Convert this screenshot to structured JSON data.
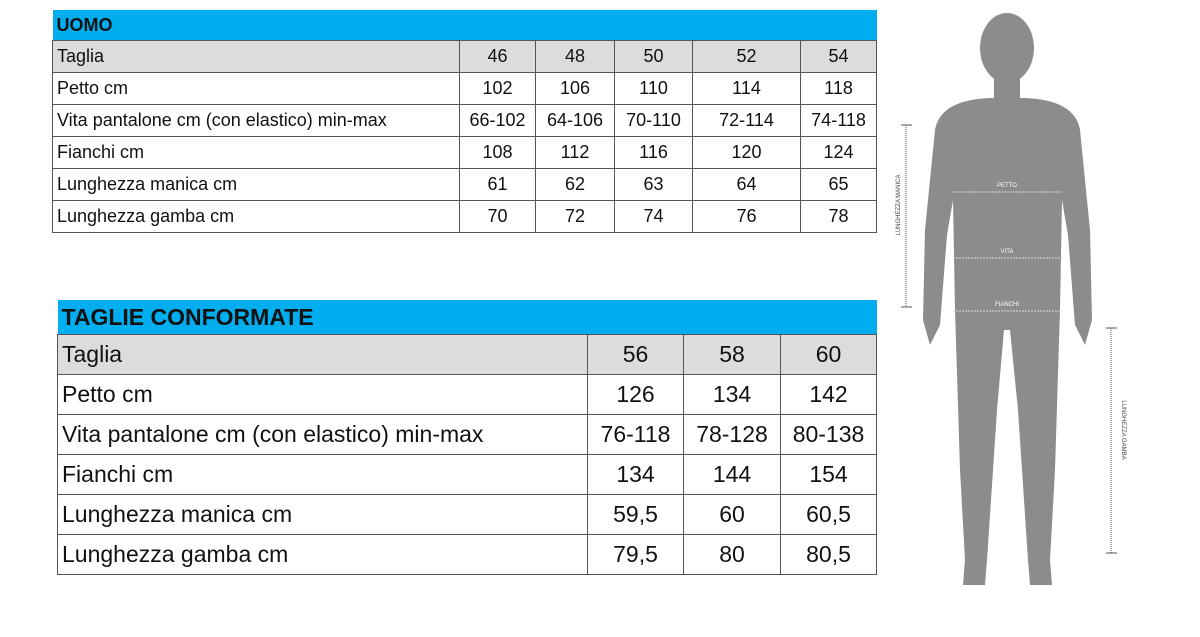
{
  "uomo": {
    "title": "UOMO",
    "header": {
      "label": "Taglia",
      "sizes": [
        "46",
        "48",
        "50",
        "52",
        "54"
      ]
    },
    "rows": [
      {
        "label": "Petto cm",
        "values": [
          "102",
          "106",
          "110",
          "114",
          "118"
        ]
      },
      {
        "label": "Vita pantalone cm (con elastico) min-max",
        "values": [
          "66-102",
          "64-106",
          "70-110",
          "72-114",
          "74-118"
        ]
      },
      {
        "label": "Fianchi cm",
        "values": [
          "108",
          "112",
          "116",
          "120",
          "124"
        ]
      },
      {
        "label": "Lunghezza manica cm",
        "values": [
          "61",
          "62",
          "63",
          "64",
          "65"
        ]
      },
      {
        "label": "Lunghezza gamba cm",
        "values": [
          "70",
          "72",
          "74",
          "76",
          "78"
        ]
      }
    ]
  },
  "conformate": {
    "title": "TAGLIE CONFORMATE",
    "header": {
      "label": "Taglia",
      "sizes": [
        "56",
        "58",
        "60"
      ]
    },
    "rows": [
      {
        "label": "Petto cm",
        "values": [
          "126",
          "134",
          "142"
        ]
      },
      {
        "label": "Vita pantalone cm (con elastico) min-max",
        "values": [
          "76-118",
          "78-128",
          "80-138"
        ]
      },
      {
        "label": "Fianchi cm",
        "values": [
          "134",
          "144",
          "154"
        ]
      },
      {
        "label": "Lunghezza manica cm",
        "values": [
          "59,5",
          "60",
          "60,5"
        ]
      },
      {
        "label": "Lunghezza gamba cm",
        "values": [
          "79,5",
          "80",
          "80,5"
        ]
      }
    ]
  },
  "figure": {
    "petto": "PETTO",
    "vita": "VITA",
    "fianchi": "FIANCHI",
    "lunghezza_manica": "LUNGHEZZA MANICA",
    "lunghezza_gamba": "LUNGHEZZA GAMBA"
  },
  "colors": {
    "header_blue": "#00aeef",
    "header_gray": "#dcdcdc",
    "silhouette": "#8c8c8c"
  }
}
